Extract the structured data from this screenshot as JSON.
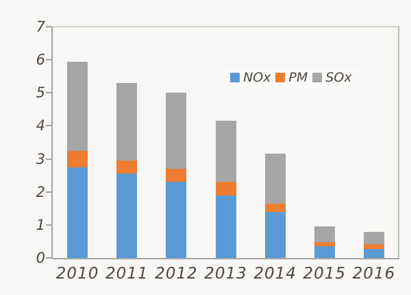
{
  "chart_data": {
    "type": "bar",
    "subtype": "stacked",
    "title": "",
    "xlabel": "",
    "ylabel": "",
    "categories": [
      "2010",
      "2011",
      "2012",
      "2013",
      "2014",
      "2015",
      "2016"
    ],
    "series": [
      {
        "name": "NOx",
        "color": "#5b9bd5",
        "values": [
          2.75,
          2.55,
          2.3,
          1.9,
          1.4,
          0.35,
          0.28
        ]
      },
      {
        "name": "PM",
        "color": "#ed7d31",
        "values": [
          0.5,
          0.4,
          0.4,
          0.4,
          0.25,
          0.12,
          0.14
        ]
      },
      {
        "name": "SOx",
        "color": "#a6a6a6",
        "values": [
          2.7,
          2.35,
          2.3,
          1.85,
          1.5,
          0.48,
          0.38
        ]
      }
    ],
    "totals": [
      5.95,
      5.3,
      5.0,
      4.15,
      3.15,
      0.95,
      0.8
    ],
    "ylim": [
      0,
      7
    ],
    "yticks": [
      0,
      1,
      2,
      3,
      4,
      5,
      6,
      7
    ],
    "grid": false,
    "legend_position": "inside-top-center",
    "legend_labels": [
      "NOx",
      "PM",
      "SOx"
    ]
  },
  "style": {
    "background": "#f8f7f5",
    "axis_color": "#a3a3a1",
    "plot_border_color": "#ccd6ce",
    "text_color": "#4c4845"
  }
}
